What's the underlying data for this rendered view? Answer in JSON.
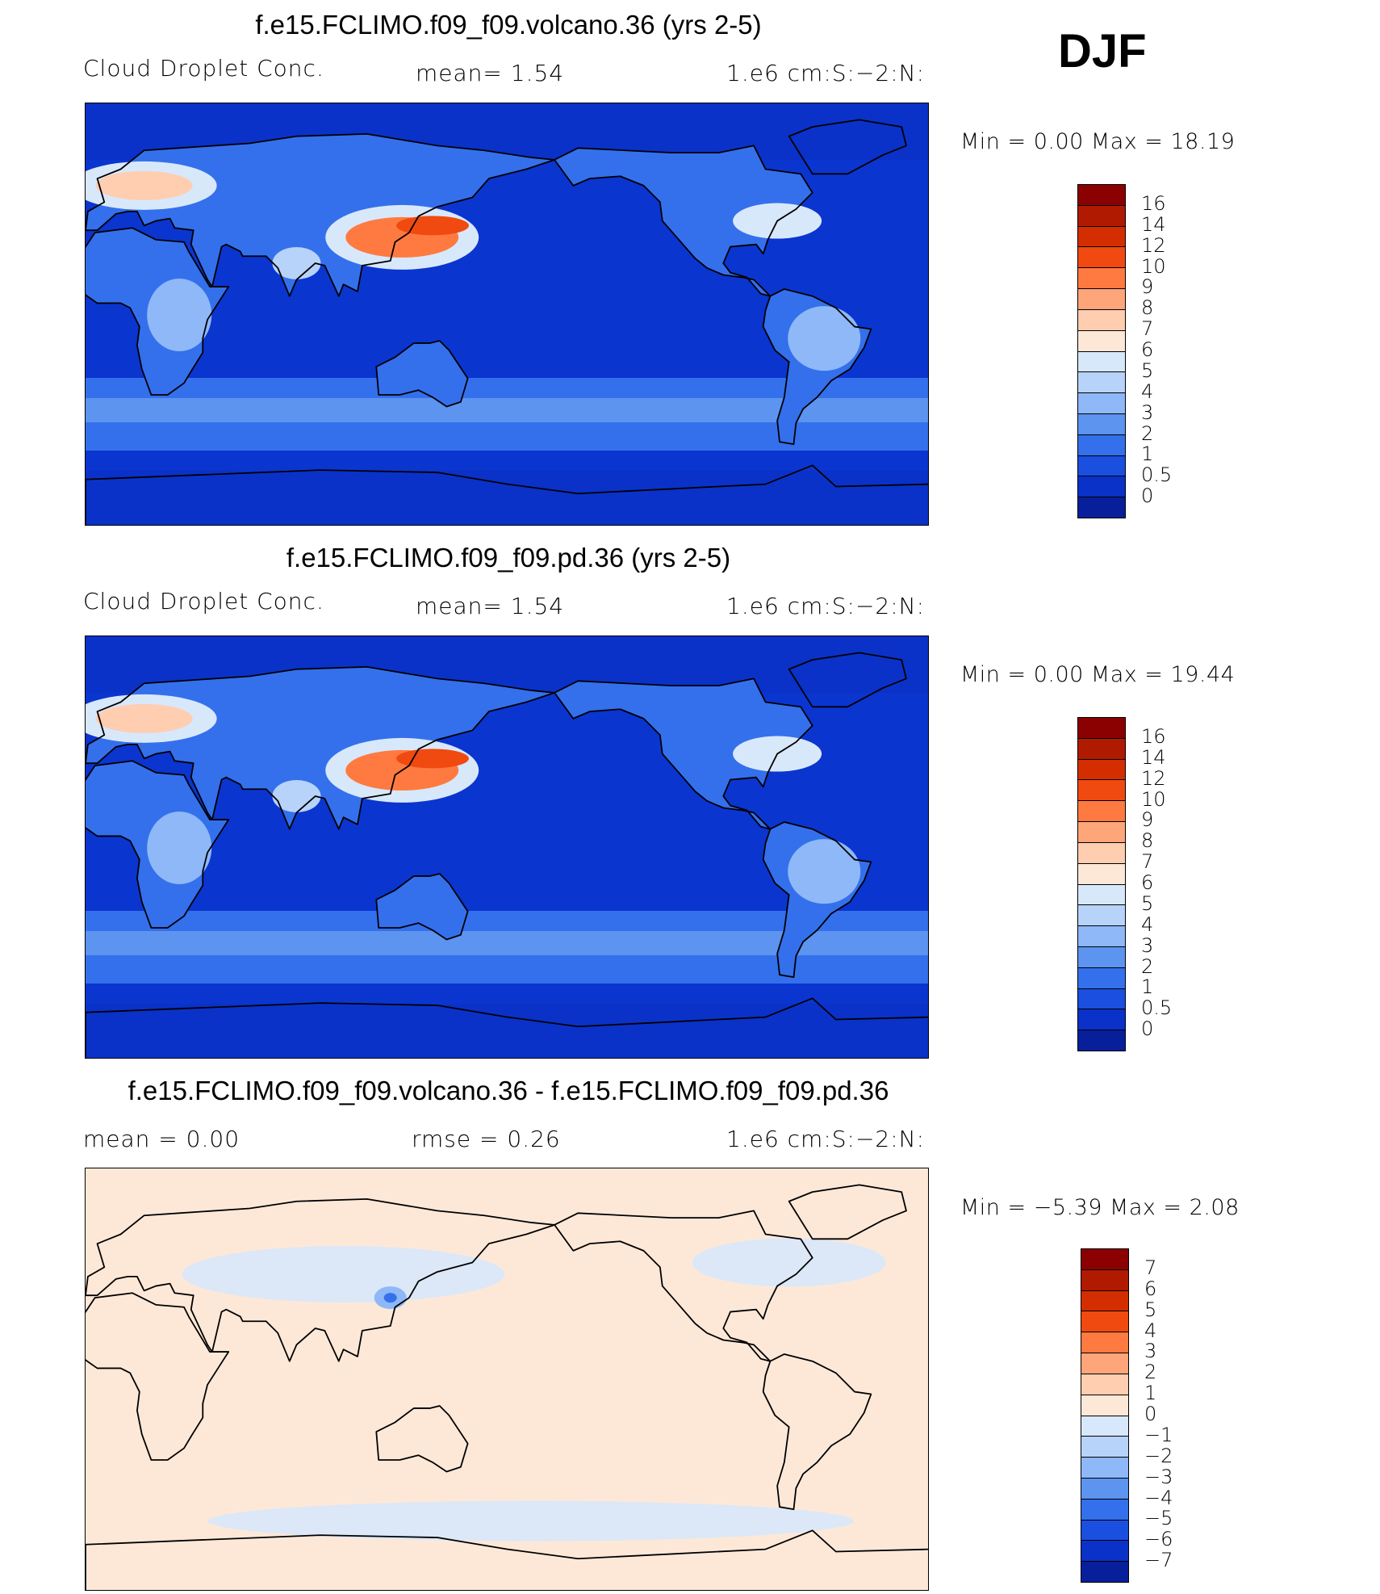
{
  "season": "DJF",
  "panels": [
    {
      "title": "f.e15.FCLIMO.f09_f09.volcano.36 (yrs 2-5)",
      "left_label": "Cloud  Droplet  Conc.",
      "center_label": "mean=     1.54",
      "right_label": "1.e6  cm:S:−2:N:",
      "minmax": "Min  =      0.00  Max  =     18.19",
      "colorbar_labels": [
        "16",
        "14",
        "12",
        "10",
        "9",
        "8",
        "7",
        "6",
        "5",
        "4",
        "3",
        "2",
        "1",
        "0.5",
        "0"
      ],
      "map_type": "abs"
    },
    {
      "title": "f.e15.FCLIMO.f09_f09.pd.36 (yrs 2-5)",
      "left_label": "Cloud  Droplet  Conc.",
      "center_label": "mean=     1.54",
      "right_label": "1.e6  cm:S:−2:N:",
      "minmax": "Min  =      0.00  Max  =     19.44",
      "colorbar_labels": [
        "16",
        "14",
        "12",
        "10",
        "9",
        "8",
        "7",
        "6",
        "5",
        "4",
        "3",
        "2",
        "1",
        "0.5",
        "0"
      ],
      "map_type": "abs"
    },
    {
      "title": "f.e15.FCLIMO.f09_f09.volcano.36 - f.e15.FCLIMO.f09_f09.pd.36",
      "left_label": "mean  =      0.00",
      "center_label": "rmse  =      0.26",
      "right_label": "1.e6  cm:S:−2:N:",
      "minmax": "Min  =    −5.39  Max  =      2.08",
      "colorbar_labels": [
        "7",
        "6",
        "5",
        "4",
        "3",
        "2",
        "1",
        "0",
        "−1",
        "−2",
        "−3",
        "−4",
        "−5",
        "−6",
        "−7"
      ],
      "map_type": "diff"
    }
  ],
  "colors": {
    "abs_scale": [
      "#8b0000",
      "#b01a00",
      "#d42e00",
      "#f04a10",
      "#ff7a40",
      "#ffa57a",
      "#ffcdb0",
      "#fde8d8",
      "#d8e8fb",
      "#b8d3fa",
      "#8eb8f7",
      "#5c94ef",
      "#3470ec",
      "#1a4fe0",
      "#0a32c8",
      "#071f9a"
    ],
    "diff_scale": [
      "#8b0000",
      "#b01a00",
      "#d42e00",
      "#f04a10",
      "#ff7a40",
      "#ffa57a",
      "#ffcdb0",
      "#fde8d8",
      "#d8e8fb",
      "#b8d3fa",
      "#8eb8f7",
      "#5c94ef",
      "#3470ec",
      "#1a4fe0",
      "#0a32c8",
      "#071f9a"
    ],
    "ocean_base": "#0b35cf",
    "diff_base": "#fde8d8"
  }
}
